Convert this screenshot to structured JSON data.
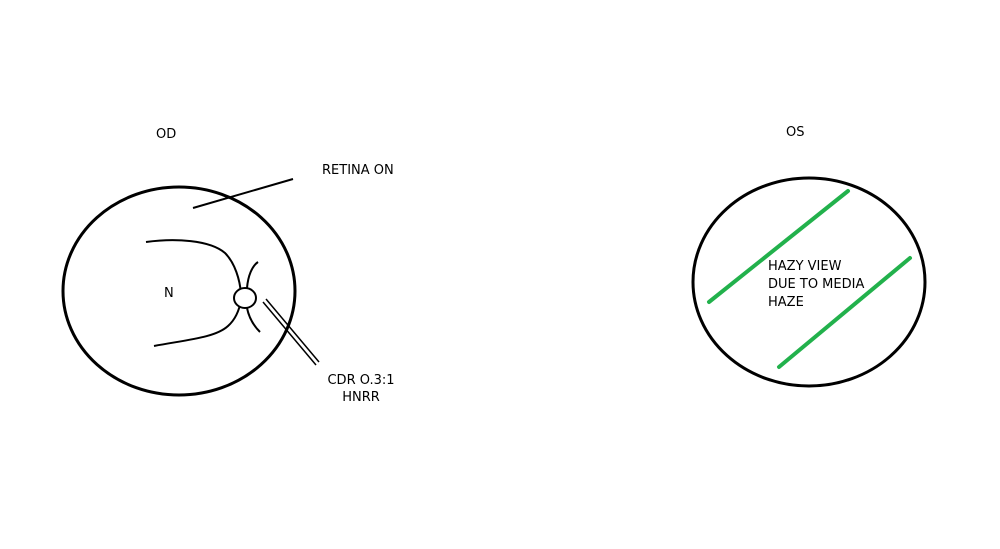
{
  "colors": {
    "ink": "#000000",
    "haze_lines": "#22b14c",
    "background": "#ffffff"
  },
  "right_eye": {
    "title": "OD",
    "retina_label": "RETINA ON",
    "nasal_marker": "N",
    "cdr_label": "CDR O.3:1",
    "hnrr_label": "HNRR"
  },
  "left_eye": {
    "title": "OS",
    "note_line1": "HAZY VIEW",
    "note_line2": "DUE TO MEDIA",
    "note_line3": "HAZE"
  }
}
